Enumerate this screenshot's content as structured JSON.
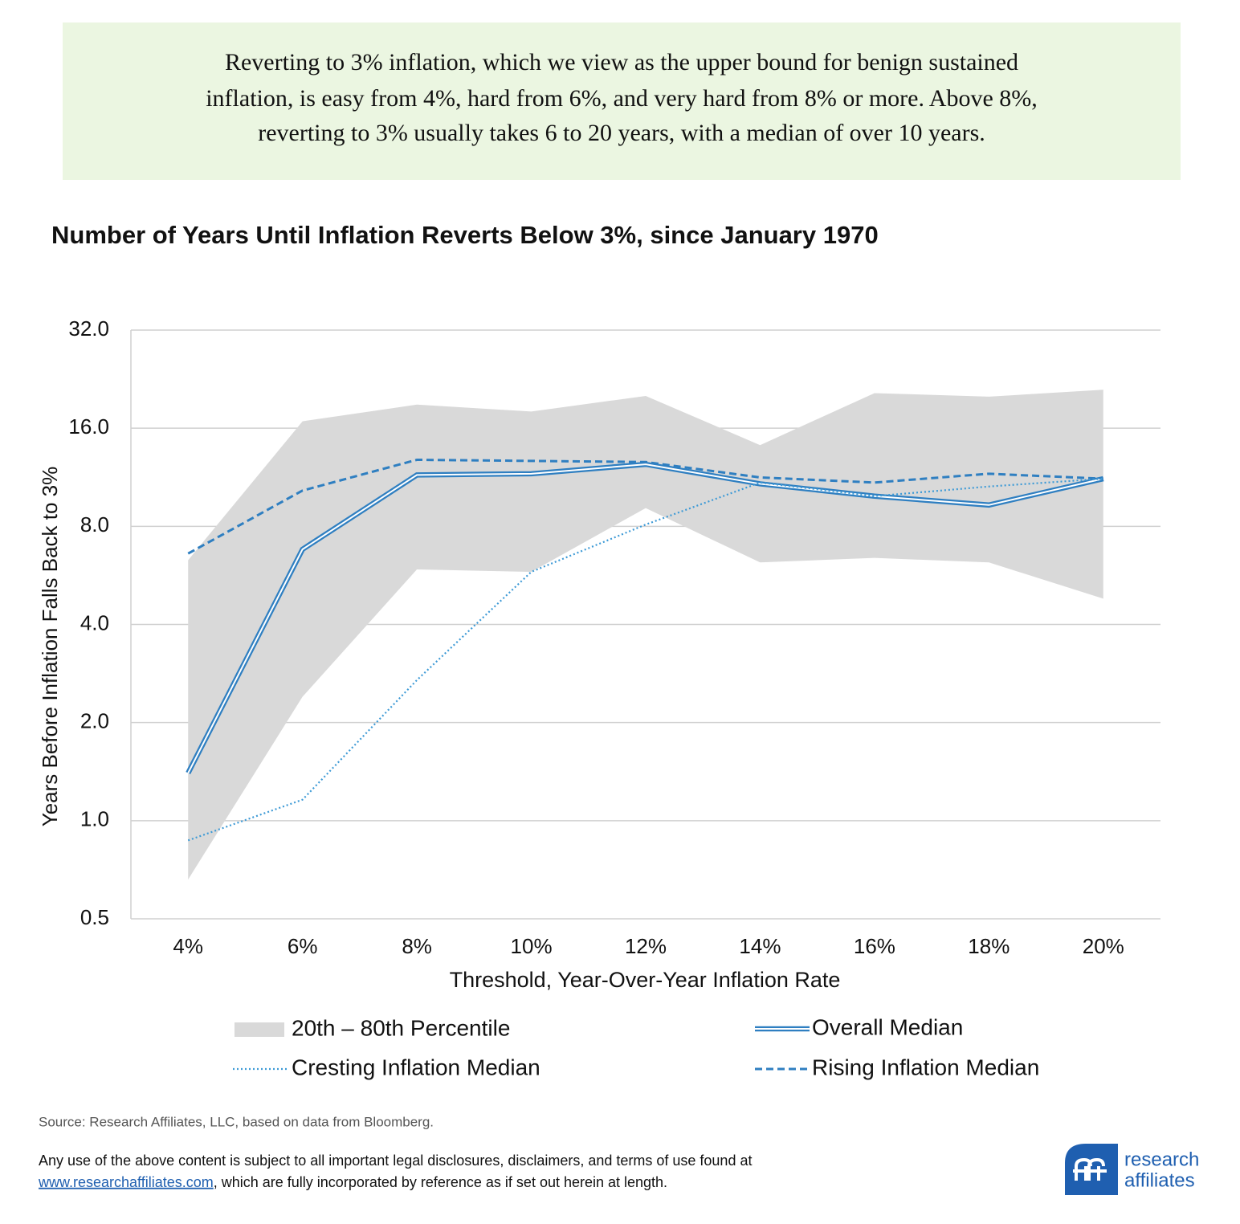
{
  "header": {
    "lines": [
      "Reverting to 3% inflation, which we view as the upper bound for benign sustained",
      "inflation, is easy from 4%, hard from 6%, and very hard from 8% or more. Above 8%,",
      "reverting to 3% usually takes 6 to 20 years, with a median of over 10 years."
    ]
  },
  "chart_data": {
    "type": "line",
    "title": "Number of Years Until Inflation Reverts Below 3%, since January 1970",
    "x_label": "Threshold,  Year-Over-Year  Inflation  Rate",
    "y_label": "Years Before Inflation  Falls Back to 3%",
    "categories": [
      "4%",
      "6%",
      "8%",
      "10%",
      "12%",
      "14%",
      "16%",
      "18%",
      "20%"
    ],
    "y_scale": "log",
    "ylim": [
      0.5,
      32
    ],
    "yticks": [
      {
        "value": 0.5,
        "label": "0.5"
      },
      {
        "value": 1,
        "label": "1.0"
      },
      {
        "value": 2,
        "label": "2.0"
      },
      {
        "value": 4,
        "label": "4.0"
      },
      {
        "value": 8,
        "label": "8.0"
      },
      {
        "value": 16,
        "label": "16.0"
      },
      {
        "value": 32,
        "label": "32.0"
      }
    ],
    "grid": true,
    "band": {
      "name": "20th – 80th Percentile",
      "color": "#d9d9d9",
      "lower": [
        0.66,
        2.4,
        5.9,
        5.8,
        9.1,
        6.2,
        6.4,
        6.2,
        4.8
      ],
      "upper": [
        6.3,
        16.8,
        18.9,
        18.0,
        20.1,
        14.2,
        20.5,
        20.0,
        21.0
      ]
    },
    "series": [
      {
        "name": "Overall Median",
        "color": "#2f7fc1",
        "style": "double",
        "values": [
          1.4,
          6.8,
          11.5,
          11.6,
          12.4,
          10.8,
          9.9,
          9.3,
          11.2
        ]
      },
      {
        "name": "Rising Inflation Median",
        "color": "#2f7fc1",
        "style": "dashed",
        "values": [
          6.6,
          10.3,
          12.8,
          12.7,
          12.6,
          11.3,
          10.9,
          11.6,
          11.2
        ]
      },
      {
        "name": "Cresting Inflation Median",
        "color": "#3d9ad6",
        "style": "dotted",
        "values": [
          0.87,
          1.16,
          2.7,
          5.8,
          8.1,
          10.9,
          9.9,
          10.6,
          11.2
        ]
      }
    ]
  },
  "footer": {
    "source": "Source: Research Affiliates, LLC, based on data from Bloomberg.",
    "disclaimer_line1": "Any use of the above content is subject to all important legal disclosures, disclaimers, and terms of use found at",
    "link": "www.researchaffiliates.com",
    "disclaimer_line2_rest": ", which are fully incorporated by reference as if set out herein at length.",
    "logo_line1": "research",
    "logo_line2": "affiliates"
  }
}
